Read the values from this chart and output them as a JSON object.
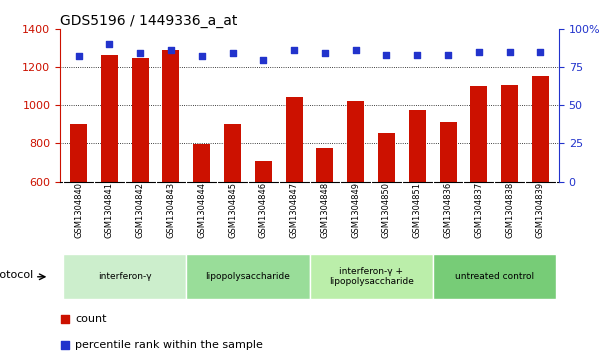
{
  "title": "GDS5196 / 1449336_a_at",
  "samples": [
    "GSM1304840",
    "GSM1304841",
    "GSM1304842",
    "GSM1304843",
    "GSM1304844",
    "GSM1304845",
    "GSM1304846",
    "GSM1304847",
    "GSM1304848",
    "GSM1304849",
    "GSM1304850",
    "GSM1304851",
    "GSM1304836",
    "GSM1304837",
    "GSM1304838",
    "GSM1304839"
  ],
  "counts": [
    900,
    1265,
    1250,
    1290,
    795,
    900,
    705,
    1045,
    775,
    1020,
    855,
    975,
    910,
    1100,
    1105,
    1155
  ],
  "percentiles": [
    82,
    90,
    84,
    86,
    82,
    84,
    80,
    86,
    84,
    86,
    83,
    83,
    83,
    85,
    85,
    85
  ],
  "ylim_left": [
    600,
    1400
  ],
  "ylim_right": [
    0,
    100
  ],
  "yticks_left": [
    600,
    800,
    1000,
    1200,
    1400
  ],
  "yticks_right": [
    0,
    25,
    50,
    75,
    100
  ],
  "bar_color": "#cc1100",
  "dot_color": "#2233cc",
  "protocol_groups": [
    {
      "label": "interferon-γ",
      "start": 0,
      "end": 4,
      "color": "#cceecc"
    },
    {
      "label": "lipopolysaccharide",
      "start": 4,
      "end": 8,
      "color": "#99dd99"
    },
    {
      "label": "interferon-γ +\nlipopolysaccharide",
      "start": 8,
      "end": 12,
      "color": "#bbeeaa"
    },
    {
      "label": "untreated control",
      "start": 12,
      "end": 16,
      "color": "#77cc77"
    }
  ],
  "protocol_label": "protocol",
  "legend_count_label": "count",
  "legend_percentile_label": "percentile rank within the sample",
  "right_axis_color": "#2233cc",
  "title_fontsize": 10,
  "tick_fontsize": 8,
  "sample_fontsize": 6,
  "xtick_bg": "#d8d8d8"
}
